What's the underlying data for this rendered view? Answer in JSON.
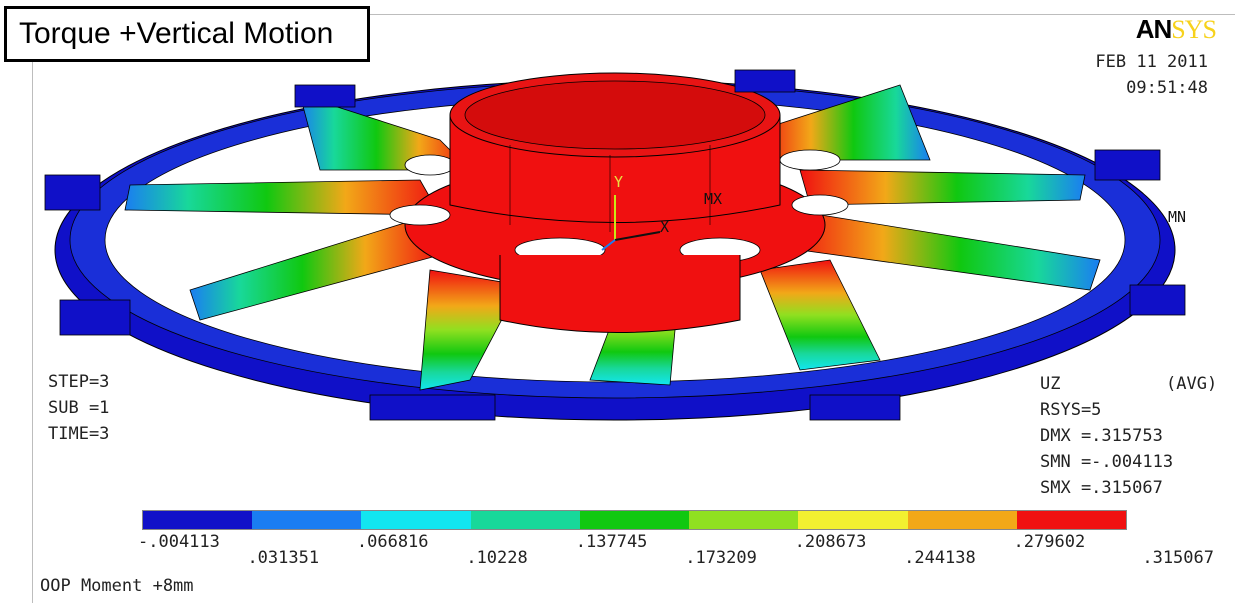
{
  "title": "Torque +Vertical Motion",
  "logo": {
    "part1": "AN",
    "part2": "SYS"
  },
  "date": "FEB 11 2011",
  "time": "09:51:48",
  "step_info": {
    "step": "STEP=3",
    "sub": "SUB =1",
    "time": "TIME=3"
  },
  "result_info": {
    "uz": "UZ",
    "avg": "(AVG)",
    "rsys": "RSYS=5",
    "dmx": "DMX =.315753",
    "smn": "SMN =-.004113",
    "smx": "SMX =.315067"
  },
  "model_labels": {
    "mx": "MX",
    "mn": "MN",
    "y_axis": "Y",
    "x_axis": "X"
  },
  "legend": {
    "colors": [
      "#1010c8",
      "#1a7df2",
      "#12e6f0",
      "#18d89a",
      "#10c810",
      "#90e020",
      "#f2f030",
      "#f2a818",
      "#f01010"
    ],
    "labels_top": [
      "-.004113",
      ".066816",
      ".137745",
      ".208673",
      ".279602"
    ],
    "labels_bottom": [
      ".031351",
      ".10228",
      ".173209",
      ".244138",
      ".315067"
    ]
  },
  "footer": "OOP Moment +8mm"
}
